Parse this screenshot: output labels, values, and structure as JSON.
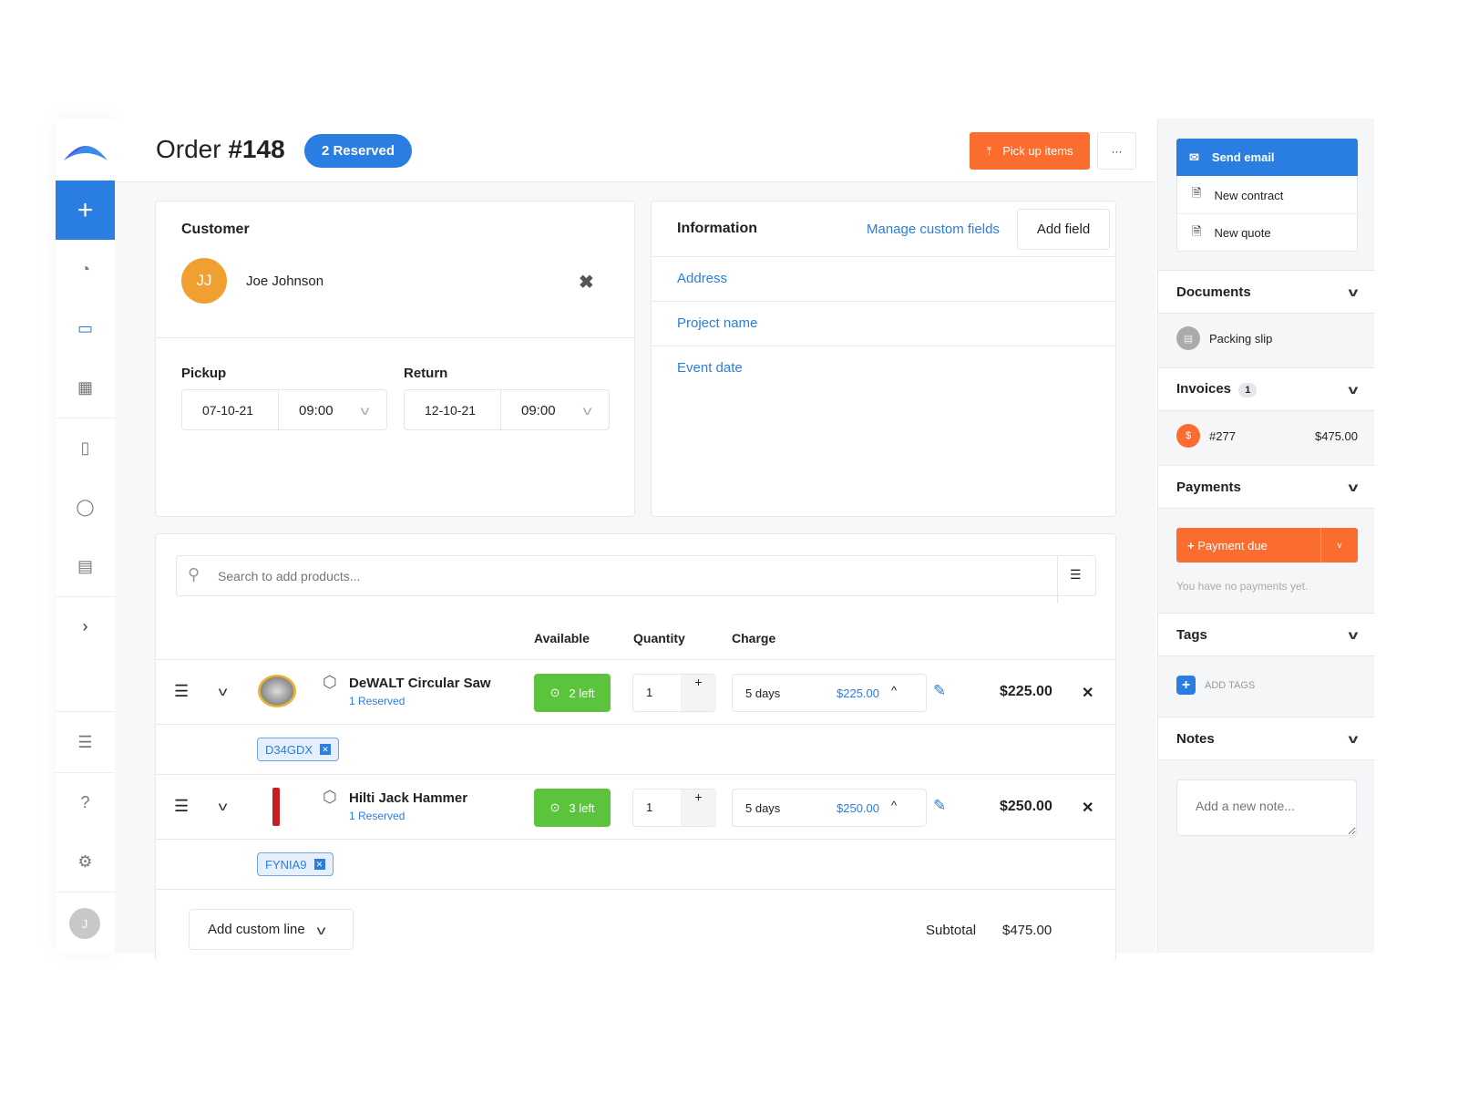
{
  "header": {
    "title_prefix": "Order ",
    "title_number": "#148",
    "status_badge": "2 Reserved",
    "pickup_button": "Pick up items",
    "more_button": "···"
  },
  "sidebar": {
    "items": [
      "add",
      "dashboard",
      "inbox",
      "calendar",
      "document",
      "user",
      "store",
      "expand",
      "barcode",
      "help",
      "settings"
    ],
    "avatar": "J"
  },
  "customer": {
    "title": "Customer",
    "initials": "JJ",
    "name": "Joe Johnson",
    "avatar_color": "#f0a030"
  },
  "pickup": {
    "label": "Pickup",
    "date": "07-10-21",
    "time": "09:00"
  },
  "return": {
    "label": "Return",
    "date": "12-10-21",
    "time": "09:00"
  },
  "information": {
    "title": "Information",
    "manage_link": "Manage custom fields",
    "add_field": "Add field",
    "fields": [
      "Address",
      "Project name",
      "Event date"
    ]
  },
  "products": {
    "search_placeholder": "Search to add products...",
    "columns": {
      "available": "Available",
      "quantity": "Quantity",
      "charge": "Charge"
    },
    "rows": [
      {
        "name": "DeWALT Circular Saw",
        "reserved": "1 Reserved",
        "available": "2 left",
        "quantity": "1",
        "period": "5 days",
        "charge": "$225.00",
        "total": "$225.00",
        "tag": "D34GDX"
      },
      {
        "name": "Hilti Jack Hammer",
        "reserved": "1 Reserved",
        "available": "3 left",
        "quantity": "1",
        "period": "5 days",
        "charge": "$250.00",
        "total": "$250.00",
        "tag": "FYNIA9"
      }
    ],
    "add_custom_line": "Add custom line",
    "subtotal_label": "Subtotal",
    "subtotal": "$475.00"
  },
  "actions": {
    "send_email": "Send email",
    "new_contract": "New contract",
    "new_quote": "New quote"
  },
  "documents": {
    "title": "Documents",
    "items": [
      "Packing slip"
    ]
  },
  "invoices": {
    "title": "Invoices",
    "count": "1",
    "items": [
      {
        "number": "#277",
        "amount": "$475.00"
      }
    ]
  },
  "payments": {
    "title": "Payments",
    "button": "Payment due",
    "empty": "You have no payments yet."
  },
  "tags": {
    "title": "Tags",
    "add": "ADD TAGS"
  },
  "notes": {
    "title": "Notes",
    "placeholder": "Add a new note..."
  },
  "colors": {
    "primary": "#2a7de1",
    "accent": "#fa6d2e",
    "success": "#5cc33d"
  }
}
